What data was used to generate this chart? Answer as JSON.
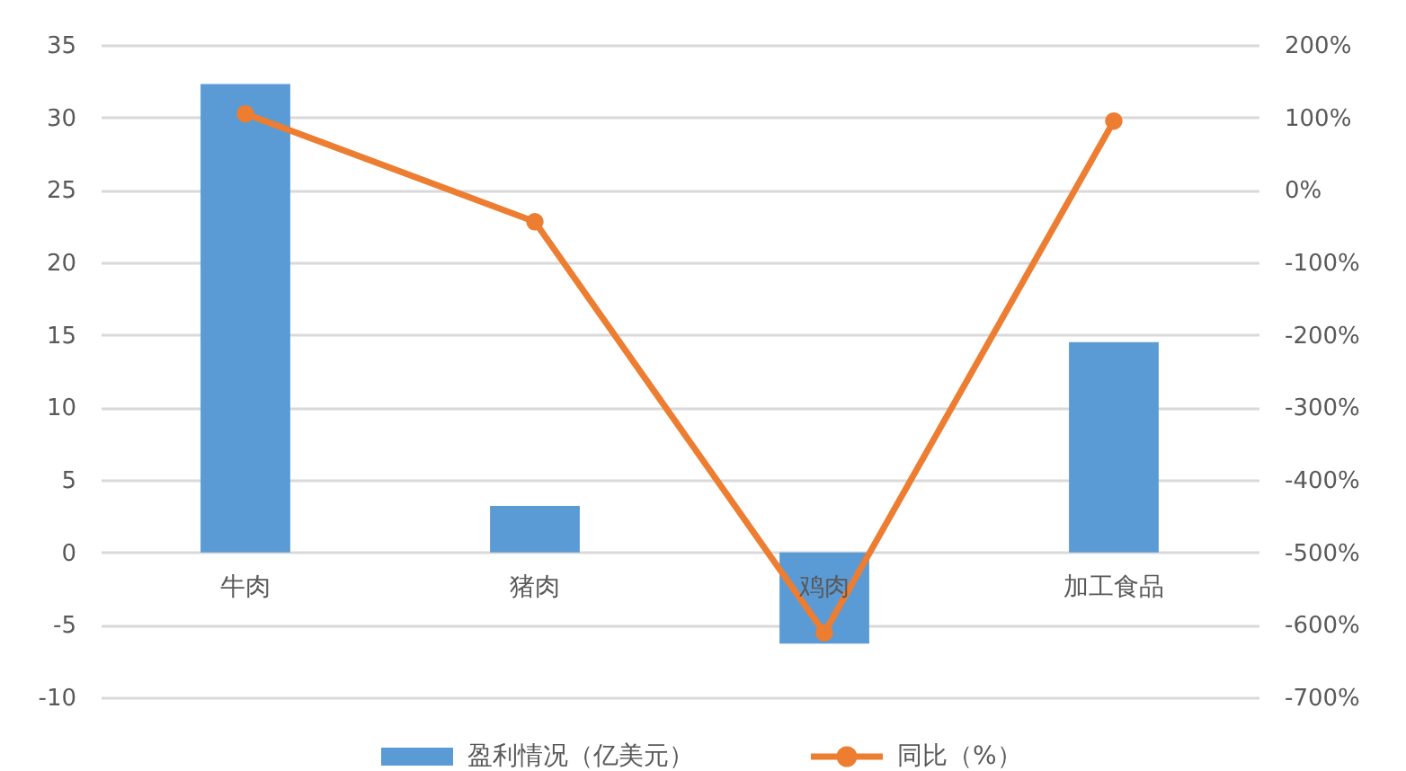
{
  "chart_data": {
    "type": "bar",
    "categories": [
      "牛肉",
      "猪肉",
      "鸡肉",
      "加工食品"
    ],
    "series": [
      {
        "name": "盈利情况（亿美元）",
        "color": "#5b9bd5",
        "values": [
          32.3,
          3.2,
          -6.3,
          14.5
        ]
      },
      {
        "name": "同比（%）",
        "type": "line",
        "axis": "y2",
        "color": "#ed7d31",
        "values": [
          105,
          -44,
          -611,
          95
        ]
      }
    ],
    "ylim": [
      -10,
      35
    ],
    "yticks": [
      -10,
      -5,
      0,
      5,
      10,
      15,
      20,
      25,
      30,
      35
    ],
    "y2lim": [
      -700,
      200
    ],
    "y2ticks": [
      {
        "value": -700,
        "label": "-700%"
      },
      {
        "value": -600,
        "label": "-600%"
      },
      {
        "value": -500,
        "label": "-500%"
      },
      {
        "value": -400,
        "label": "-400%"
      },
      {
        "value": -300,
        "label": "-300%"
      },
      {
        "value": -200,
        "label": "-200%"
      },
      {
        "value": -100,
        "label": "-100%"
      },
      {
        "value": 0,
        "label": "0%"
      },
      {
        "value": 100,
        "label": "100%"
      },
      {
        "value": 200,
        "label": "200%"
      }
    ],
    "grid": "y",
    "legend": "bottom",
    "marker": "circle"
  }
}
